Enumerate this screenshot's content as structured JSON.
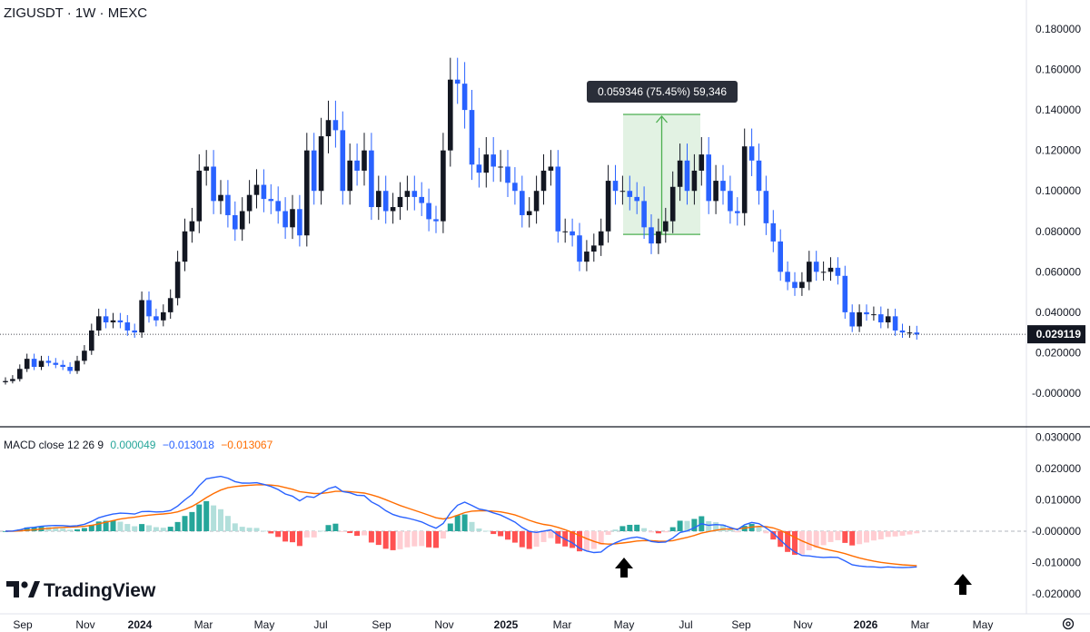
{
  "header": {
    "symbol_title": "ZIGUSDT · 1W · MEXC"
  },
  "price_panel": {
    "y_ticks": [
      "0.180000",
      "0.160000",
      "0.140000",
      "0.120000",
      "0.100000",
      "0.080000",
      "0.060000",
      "0.040000",
      "0.020000",
      "-0.000000"
    ],
    "last_price_label": "0.029119",
    "measure_label": "0.059346 (75.45%) 59,346"
  },
  "macd_panel": {
    "legend_prefix": "MACD close 12 26 9",
    "legend_hist": "0.000049",
    "legend_macd": "−0.013018",
    "legend_signal": "−0.013067",
    "y_ticks": [
      "0.030000",
      "0.020000",
      "0.010000",
      "-0.000000",
      "-0.010000",
      "-0.020000"
    ]
  },
  "x_axis": {
    "labels": [
      "Sep",
      "Nov",
      "2024",
      "Mar",
      "May",
      "Jul",
      "Sep",
      "Nov",
      "2025",
      "Mar",
      "May",
      "Jul",
      "Sep",
      "Nov",
      "2026",
      "Mar",
      "May"
    ]
  },
  "branding": {
    "logo_text": "TradingView"
  },
  "colors": {
    "up": "#131722",
    "down": "#2962ff",
    "macd": "#2962ff",
    "signal": "#ff6d00",
    "hist_pos_strong": "#26a69a",
    "hist_pos_weak": "#b2dfdb",
    "hist_neg_strong": "#ff5252",
    "hist_neg_weak": "#ffcdd2"
  },
  "chart_data": [
    {
      "type": "candlestick",
      "title": "ZIGUSDT · 1W · MEXC",
      "ylim": [
        -0.008,
        0.183
      ],
      "x_ticks": [
        "Sep",
        "Nov",
        "2024",
        "Mar",
        "May",
        "Jul",
        "Sep",
        "Nov",
        "2025",
        "Mar",
        "May",
        "Jul",
        "Sep",
        "Nov",
        "2026",
        "Mar",
        "May"
      ],
      "last_price": 0.029119,
      "measure": {
        "from": 0.0785,
        "to": 0.1378,
        "change": 0.059346,
        "percent": 75.45,
        "ticks": 59346
      },
      "closes": [
        0.006,
        0.007,
        0.012,
        0.017,
        0.013,
        0.016,
        0.015,
        0.014,
        0.013,
        0.011,
        0.016,
        0.021,
        0.031,
        0.038,
        0.035,
        0.036,
        0.035,
        0.031,
        0.03,
        0.046,
        0.038,
        0.036,
        0.04,
        0.047,
        0.065,
        0.08,
        0.085,
        0.11,
        0.112,
        0.095,
        0.098,
        0.088,
        0.081,
        0.09,
        0.098,
        0.103,
        0.096,
        0.095,
        0.09,
        0.082,
        0.091,
        0.078,
        0.12,
        0.1,
        0.127,
        0.135,
        0.13,
        0.1,
        0.115,
        0.11,
        0.12,
        0.092,
        0.1,
        0.09,
        0.092,
        0.097,
        0.1,
        0.097,
        0.094,
        0.086,
        0.085,
        0.12,
        0.155,
        0.153,
        0.14,
        0.113,
        0.109,
        0.118,
        0.112,
        0.112,
        0.104,
        0.1,
        0.088,
        0.09,
        0.1,
        0.11,
        0.112,
        0.08,
        0.08,
        0.078,
        0.065,
        0.07,
        0.073,
        0.08,
        0.105,
        0.1,
        0.1,
        0.097,
        0.095,
        0.082,
        0.074,
        0.08,
        0.085,
        0.102,
        0.115,
        0.1,
        0.11,
        0.118,
        0.095,
        0.105,
        0.1,
        0.09,
        0.089,
        0.122,
        0.115,
        0.1,
        0.084,
        0.075,
        0.06,
        0.055,
        0.052,
        0.055,
        0.065,
        0.06,
        0.06,
        0.062,
        0.058,
        0.04,
        0.033,
        0.04,
        0.039,
        0.039,
        0.035,
        0.038,
        0.031,
        0.03,
        0.03,
        0.029
      ]
    },
    {
      "type": "macd",
      "params": [
        12,
        26,
        9
      ],
      "ylim": [
        -0.0225,
        0.0305
      ],
      "last": {
        "histogram": 4.9e-05,
        "macd": -0.013018,
        "signal": -0.013067
      }
    }
  ]
}
